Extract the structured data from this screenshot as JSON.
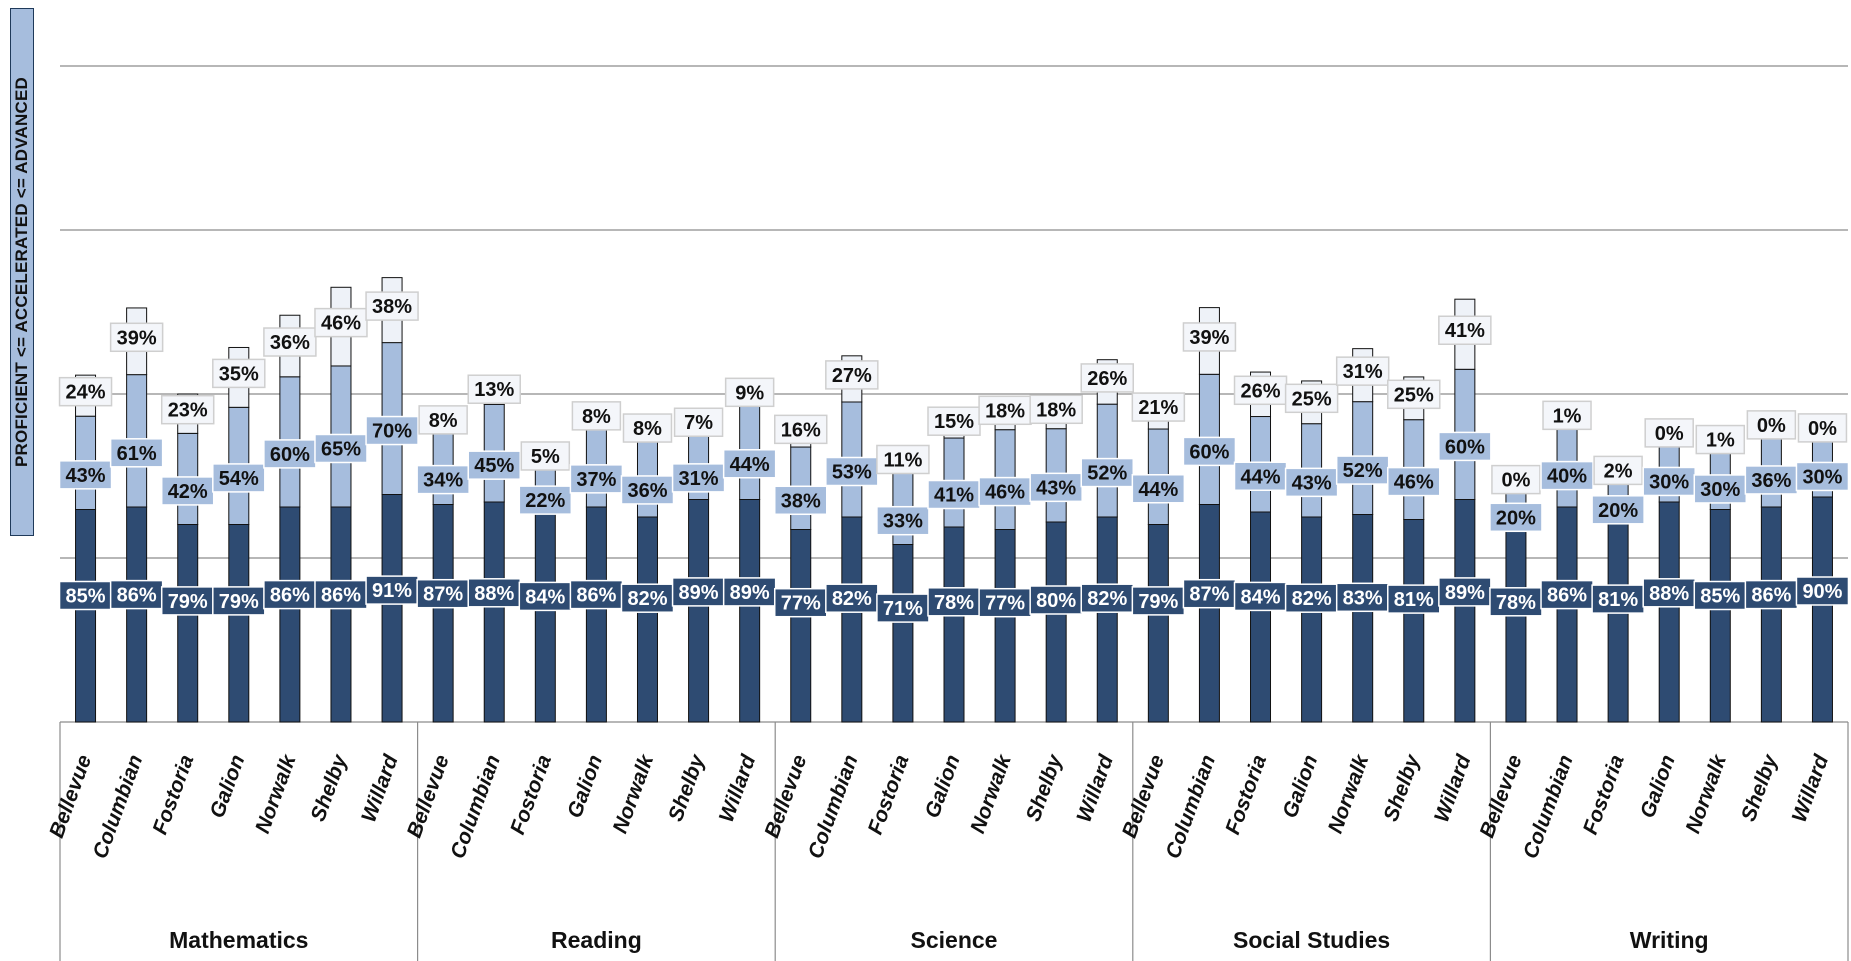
{
  "chart_data": {
    "type": "bar",
    "ylabel": "PROFICIENT <= ACCELERATED <= ADVANCED",
    "ylim": [
      0,
      100
    ],
    "grid": true,
    "legend": "none",
    "colors": {
      "proficient": "#2e4b72",
      "accelerated": "#a6bddd",
      "advanced": "#eef2f8",
      "outline": "#111111"
    },
    "groups": [
      {
        "name": "Mathematics",
        "categories": [
          "Bellevue",
          "Columbian",
          "Fostoria",
          "Galion",
          "Norwalk",
          "Shelby",
          "Willard"
        ],
        "proficient": [
          85,
          86,
          79,
          79,
          86,
          86,
          91
        ],
        "accelerated": [
          43,
          61,
          42,
          54,
          60,
          65,
          70
        ],
        "advanced": [
          24,
          39,
          23,
          35,
          36,
          46,
          38
        ]
      },
      {
        "name": "Reading",
        "categories": [
          "Bellevue",
          "Columbian",
          "Fostoria",
          "Galion",
          "Norwalk",
          "Shelby",
          "Willard"
        ],
        "proficient": [
          87,
          88,
          84,
          86,
          82,
          89,
          89
        ],
        "accelerated": [
          34,
          45,
          22,
          37,
          36,
          31,
          44
        ],
        "advanced": [
          8,
          13,
          5,
          8,
          8,
          7,
          9
        ]
      },
      {
        "name": "Science",
        "categories": [
          "Bellevue",
          "Columbian",
          "Fostoria",
          "Galion",
          "Norwalk",
          "Shelby",
          "Willard"
        ],
        "proficient": [
          77,
          82,
          71,
          78,
          77,
          80,
          82
        ],
        "accelerated": [
          38,
          53,
          33,
          41,
          46,
          43,
          52
        ],
        "advanced": [
          16,
          27,
          11,
          15,
          18,
          18,
          26
        ]
      },
      {
        "name": "Social Studies",
        "categories": [
          "Bellevue",
          "Columbian",
          "Fostoria",
          "Galion",
          "Norwalk",
          "Shelby",
          "Willard"
        ],
        "proficient": [
          79,
          87,
          84,
          82,
          83,
          81,
          89
        ],
        "accelerated": [
          44,
          60,
          44,
          43,
          52,
          46,
          60
        ],
        "advanced": [
          21,
          39,
          26,
          25,
          31,
          25,
          41
        ]
      },
      {
        "name": "Writing",
        "categories": [
          "Bellevue",
          "Columbian",
          "Fostoria",
          "Galion",
          "Norwalk",
          "Shelby",
          "Willard"
        ],
        "proficient": [
          78,
          86,
          81,
          88,
          85,
          86,
          90
        ],
        "accelerated": [
          20,
          40,
          20,
          30,
          30,
          36,
          30
        ],
        "advanced": [
          0,
          1,
          2,
          0,
          1,
          0,
          0
        ]
      }
    ]
  }
}
